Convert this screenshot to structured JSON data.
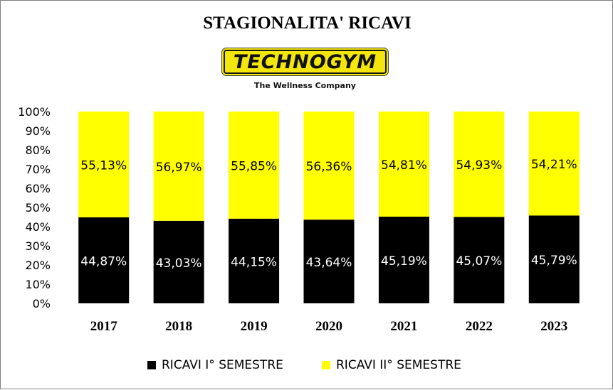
{
  "colors": {
    "series1": "#000000",
    "series2": "#ffff00",
    "grid": "#d9d9d9",
    "label_on_dark": "#ffffff",
    "label_on_light": "#000000"
  },
  "logo": {
    "brand": "TECHNOGYM",
    "tagline": "The Wellness Company"
  },
  "chart_data": {
    "type": "bar",
    "stacked": true,
    "title": "STAGIONALITA' RICAVI",
    "categories": [
      "2017",
      "2018",
      "2019",
      "2020",
      "2021",
      "2022",
      "2023"
    ],
    "series": [
      {
        "name": "RICAVI I° SEMESTRE",
        "color": "#000000",
        "values": [
          44.87,
          43.03,
          44.15,
          43.64,
          45.19,
          45.07,
          45.79
        ],
        "labels": [
          "44,87%",
          "43,03%",
          "44,15%",
          "43,64%",
          "45,19%",
          "45,07%",
          "45,79%"
        ]
      },
      {
        "name": "RICAVI II° SEMESTRE",
        "color": "#ffff00",
        "values": [
          55.13,
          56.97,
          55.85,
          56.36,
          54.81,
          54.93,
          54.21
        ],
        "labels": [
          "55,13%",
          "56,97%",
          "55,85%",
          "56,36%",
          "54,81%",
          "54,93%",
          "54,21%"
        ]
      }
    ],
    "ylim": [
      0,
      100
    ],
    "yticks": [
      0,
      10,
      20,
      30,
      40,
      50,
      60,
      70,
      80,
      90,
      100
    ],
    "ytick_labels": [
      "0%",
      "10%",
      "20%",
      "30%",
      "40%",
      "50%",
      "60%",
      "70%",
      "80%",
      "90%",
      "100%"
    ],
    "xlabel": "",
    "ylabel": "",
    "grid": false,
    "legend_position": "bottom"
  }
}
